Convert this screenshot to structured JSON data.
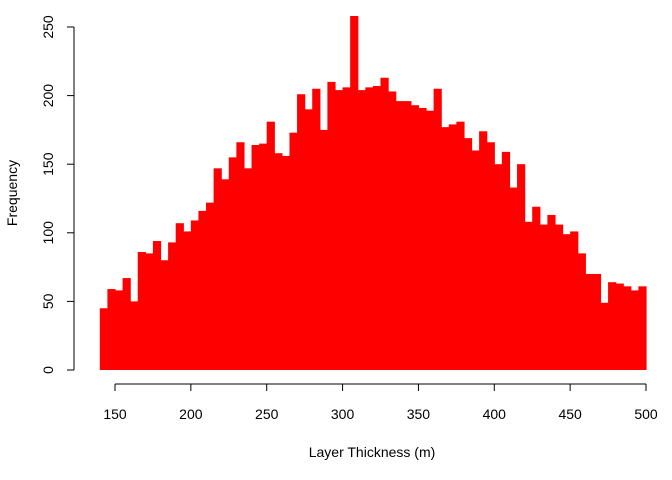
{
  "chart_data": {
    "type": "bar",
    "subtype": "histogram",
    "title": "",
    "xlabel": "Layer Thickness (m)",
    "ylabel": "Frequency",
    "bar_color": "#FF0000",
    "bin_width": 5,
    "x_start": 140,
    "xlim": [
      140,
      500
    ],
    "ylim": [
      0,
      260
    ],
    "x_ticks": [
      150,
      200,
      250,
      300,
      350,
      400,
      450,
      500
    ],
    "y_ticks": [
      0,
      50,
      100,
      150,
      200,
      250
    ],
    "grid": false,
    "values": [
      45,
      59,
      58,
      67,
      50,
      86,
      85,
      94,
      80,
      93,
      107,
      101,
      109,
      116,
      122,
      147,
      139,
      155,
      166,
      147,
      164,
      165,
      181,
      158,
      156,
      173,
      201,
      190,
      205,
      175,
      210,
      204,
      206,
      258,
      204,
      206,
      207,
      213,
      203,
      196,
      196,
      193,
      191,
      189,
      205,
      177,
      179,
      181,
      169,
      160,
      174,
      166,
      150,
      159,
      133,
      150,
      108,
      119,
      106,
      113,
      106,
      99,
      101,
      85,
      70,
      70,
      49,
      64,
      63,
      61,
      58,
      61
    ]
  }
}
